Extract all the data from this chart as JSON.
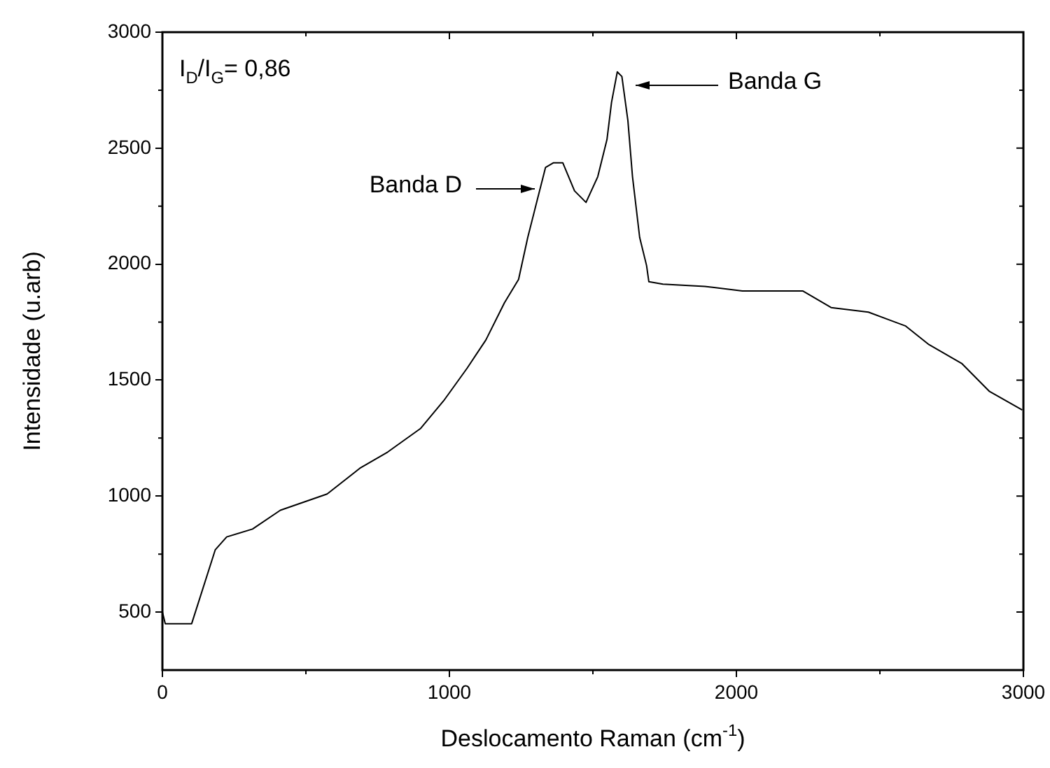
{
  "chart_data": {
    "type": "line",
    "xlabel": "Deslocamento Raman (cm$^{-1}$)",
    "ylabel": "Intensidade (u.arb)",
    "x": [
      0,
      10,
      102,
      184,
      224,
      314,
      411,
      574,
      688,
      785,
      899,
      980,
      1062,
      1127,
      1192,
      1241,
      1273,
      1306,
      1335,
      1363,
      1395,
      1436,
      1476,
      1517,
      1549,
      1565,
      1585,
      1601,
      1622,
      1638,
      1663,
      1687,
      1695,
      1744,
      1890,
      2021,
      2232,
      2330,
      2460,
      2590,
      2671,
      2785,
      2882,
      2996
    ],
    "series": [
      {
        "color": "#000000",
        "values": [
          500,
          450,
          450,
          768,
          824,
          858,
          939,
          1009,
          1120,
          1190,
          1291,
          1411,
          1552,
          1673,
          1834,
          1934,
          2115,
          2276,
          2417,
          2437,
          2437,
          2316,
          2266,
          2377,
          2537,
          2698,
          2829,
          2809,
          2618,
          2377,
          2115,
          1994,
          1924,
          1914,
          1904,
          1884,
          1884,
          1813,
          1793,
          1733,
          1653,
          1572,
          1451,
          1371
        ]
      }
    ],
    "xlim": [
      0,
      3000
    ],
    "xticks": [
      0,
      1000,
      2000,
      3000
    ],
    "ylim": [
      250,
      3000
    ],
    "yticks": [
      500,
      1000,
      1500,
      2000,
      2500,
      3000
    ],
    "grid": false,
    "legend": false,
    "marker": "none",
    "line_style": "solid",
    "annotations": [
      "I$_{D}$/I$_{G}$= 0,86",
      "Banda D",
      "Banda G"
    ]
  }
}
